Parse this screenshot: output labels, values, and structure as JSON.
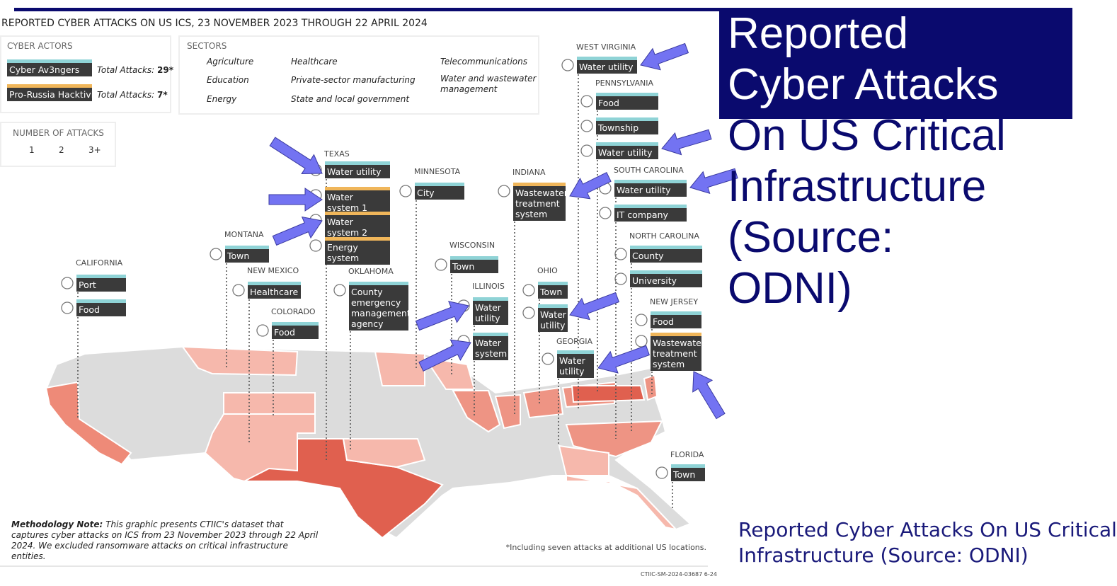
{
  "header_title": "REPORTED CYBER ATTACKS ON US ICS, 23 NOVEMBER 2023 THROUGH 22 APRIL 2024",
  "cyber_actors": {
    "title": "CYBER ACTORS",
    "items": [
      {
        "name": "Cyber Av3ngers",
        "color": "#8fd3d6",
        "label": "Total Attacks:",
        "total": "29*"
      },
      {
        "name": "Pro-Russia Hacktivist",
        "color": "#f0b65a",
        "label": "Total Attacks:",
        "total": "7*"
      }
    ]
  },
  "sectors": {
    "title": "SECTORS",
    "items": [
      "Agriculture",
      "Education",
      "Energy",
      "Healthcare",
      "Private-sector manufacturing",
      "State and local government",
      "Telecommunications",
      "Water and wastewater management"
    ]
  },
  "number_of_attacks": {
    "title": "NUMBER OF ATTACKS",
    "items": [
      {
        "label": "1",
        "color": "#f6b8ac"
      },
      {
        "label": "2",
        "color": "#ee9484"
      },
      {
        "label": "3+",
        "color": "#e0604f"
      }
    ]
  },
  "states": [
    {
      "name": "CALIFORNIA",
      "entries": [
        {
          "text": "Port",
          "stripe": "#8fd3d6"
        },
        {
          "text": "Food",
          "stripe": "#8fd3d6"
        }
      ]
    },
    {
      "name": "MONTANA",
      "entries": [
        {
          "text": "Town",
          "stripe": "#8fd3d6"
        }
      ]
    },
    {
      "name": "NEW MEXICO",
      "entries": [
        {
          "text": "Healthcare",
          "stripe": "#8fd3d6"
        }
      ]
    },
    {
      "name": "COLORADO",
      "entries": [
        {
          "text": "Food",
          "stripe": "#8fd3d6"
        }
      ]
    },
    {
      "name": "TEXAS",
      "entries": [
        {
          "text": "Water utility",
          "stripe": "#8fd3d6"
        },
        {
          "text": "Water system 1",
          "stripe": "#f0b65a"
        },
        {
          "text": "Water system 2",
          "stripe": "#f0b65a"
        },
        {
          "text": "Energy system",
          "stripe": "#f0b65a"
        }
      ]
    },
    {
      "name": "OKLAHOMA",
      "entries": [
        {
          "text": "County emergency management agency",
          "stripe": "#8fd3d6"
        }
      ]
    },
    {
      "name": "MINNESOTA",
      "entries": [
        {
          "text": "City",
          "stripe": "#8fd3d6"
        }
      ]
    },
    {
      "name": "WISCONSIN",
      "entries": [
        {
          "text": "Town",
          "stripe": "#8fd3d6"
        }
      ]
    },
    {
      "name": "ILLINOIS",
      "entries": [
        {
          "text": "Water utility",
          "stripe": "#8fd3d6"
        },
        {
          "text": "Water system",
          "stripe": "#8fd3d6"
        }
      ]
    },
    {
      "name": "INDIANA",
      "entries": [
        {
          "text": "Wastewater treatment system",
          "stripe": "#f0b65a"
        }
      ]
    },
    {
      "name": "OHIO",
      "entries": [
        {
          "text": "Town",
          "stripe": "#8fd3d6"
        },
        {
          "text": "Water utility",
          "stripe": "#8fd3d6"
        }
      ]
    },
    {
      "name": "GEORGIA",
      "entries": [
        {
          "text": "Water utility",
          "stripe": "#8fd3d6"
        }
      ]
    },
    {
      "name": "WEST VIRGINIA",
      "entries": [
        {
          "text": "Water utility",
          "stripe": "#8fd3d6"
        }
      ]
    },
    {
      "name": "PENNSYLVANIA",
      "entries": [
        {
          "text": "Food",
          "stripe": "#8fd3d6"
        },
        {
          "text": "Township",
          "stripe": "#8fd3d6"
        },
        {
          "text": "Water utility",
          "stripe": "#8fd3d6"
        }
      ]
    },
    {
      "name": "SOUTH CAROLINA",
      "entries": [
        {
          "text": "Water utility",
          "stripe": "#8fd3d6"
        },
        {
          "text": "IT company",
          "stripe": "#8fd3d6"
        }
      ]
    },
    {
      "name": "NORTH CAROLINA",
      "entries": [
        {
          "text": "County",
          "stripe": "#8fd3d6"
        },
        {
          "text": "University",
          "stripe": "#8fd3d6"
        }
      ]
    },
    {
      "name": "NEW JERSEY",
      "entries": [
        {
          "text": "Food",
          "stripe": "#8fd3d6"
        },
        {
          "text": "Wastewater treatment system",
          "stripe": "#f0b65a"
        }
      ]
    },
    {
      "name": "FLORIDA",
      "entries": [
        {
          "text": "Town",
          "stripe": "#8fd3d6"
        }
      ]
    }
  ],
  "methodology": {
    "lead": "Methodology Note:",
    "text": "This graphic presents CTIIC's dataset that captures cyber attacks on ICS from 23 November 2023 through 22 April 2024. We excluded ransomware attacks on critical infrastructure entities."
  },
  "footnote": "*Including seven attacks at additional US locations.",
  "doc_id": "CTIIC-SM-2024-03687 6-24",
  "slide_title_lines": [
    "Reported",
    "Cyber Attacks",
    "On US Critical",
    "Infrastructure",
    "(Source:",
    "ODNI)"
  ],
  "caption_lines": [
    "Reported Cyber Attacks On US Critical",
    "Infrastructure (Source: ODNI)"
  ]
}
